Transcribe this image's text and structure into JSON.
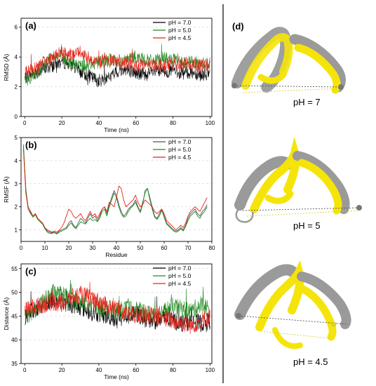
{
  "chart_data": [
    {
      "type": "line",
      "panel_label": "(a)",
      "xlabel": "Time (ns)",
      "ylabel": "RMSD (Å)",
      "xlim": [
        -2,
        101
      ],
      "ylim": [
        0,
        6.6
      ],
      "xticks": [
        0,
        20,
        40,
        60,
        80,
        100
      ],
      "yticks": [
        0,
        2,
        4,
        6
      ],
      "grid": true,
      "legend": "top-right",
      "series": [
        {
          "name": "pH = 7.0",
          "color": "#000000",
          "x": [
            0,
            5,
            10,
            15,
            20,
            25,
            30,
            35,
            40,
            45,
            50,
            55,
            60,
            65,
            70,
            75,
            80,
            85,
            90,
            95,
            100
          ],
          "values": [
            2.6,
            2.9,
            3.2,
            3.4,
            3.7,
            3.5,
            3.0,
            2.7,
            2.4,
            2.6,
            3.0,
            3.2,
            2.9,
            2.8,
            3.0,
            3.0,
            3.1,
            2.9,
            3.0,
            2.8,
            2.9
          ]
        },
        {
          "name": "pH = 5.0",
          "color": "#1f8a1f",
          "x": [
            0,
            5,
            10,
            15,
            20,
            25,
            30,
            35,
            40,
            45,
            50,
            55,
            60,
            65,
            70,
            75,
            80,
            85,
            90,
            95,
            100
          ],
          "values": [
            2.4,
            2.8,
            3.4,
            4.2,
            4.0,
            3.6,
            3.4,
            3.5,
            3.7,
            3.9,
            3.6,
            3.8,
            4.0,
            3.8,
            3.7,
            3.9,
            3.8,
            3.6,
            3.7,
            3.5,
            3.6
          ]
        },
        {
          "name": "pH = 4.5",
          "color": "#e8231a",
          "x": [
            0,
            5,
            10,
            15,
            20,
            25,
            30,
            35,
            40,
            45,
            50,
            55,
            60,
            65,
            70,
            75,
            80,
            85,
            90,
            95,
            100
          ],
          "values": [
            3.0,
            3.2,
            3.6,
            4.0,
            4.3,
            4.1,
            4.4,
            3.9,
            3.6,
            3.7,
            3.8,
            3.5,
            3.4,
            3.6,
            3.5,
            3.4,
            3.6,
            3.5,
            3.6,
            3.4,
            3.5
          ]
        }
      ]
    },
    {
      "type": "line",
      "panel_label": "(b)",
      "xlabel": "Residue",
      "ylabel": "RMSF (Å)",
      "xlim": [
        0,
        80
      ],
      "ylim": [
        0.5,
        5
      ],
      "xticks": [
        0,
        10,
        20,
        30,
        40,
        50,
        60,
        70,
        80
      ],
      "yticks": [
        1,
        2,
        3,
        4,
        5
      ],
      "grid": true,
      "legend": "top-right",
      "series": [
        {
          "name": "pH = 7.0",
          "color": "#555555",
          "x": [
            1,
            2,
            3,
            4,
            5,
            6,
            7,
            8,
            9,
            10,
            11,
            12,
            13,
            14,
            15,
            16,
            17,
            18,
            19,
            20,
            21,
            22,
            23,
            24,
            25,
            26,
            27,
            28,
            29,
            30,
            31,
            32,
            33,
            34,
            35,
            36,
            37,
            38,
            39,
            40,
            41,
            42,
            43,
            44,
            45,
            46,
            47,
            48,
            49,
            50,
            51,
            52,
            53,
            54,
            55,
            56,
            57,
            58,
            59,
            60,
            61,
            62,
            63,
            64,
            65,
            66,
            67,
            68,
            69,
            70,
            71,
            72,
            73,
            74,
            75,
            76,
            77,
            78
          ],
          "values": [
            4.6,
            2.7,
            2.0,
            1.8,
            1.6,
            1.7,
            1.5,
            1.4,
            1.3,
            1.1,
            0.95,
            0.9,
            0.88,
            0.9,
            0.85,
            0.95,
            1.0,
            1.05,
            1.1,
            1.3,
            1.4,
            1.2,
            1.1,
            1.3,
            1.5,
            1.4,
            1.3,
            1.5,
            1.7,
            1.5,
            1.6,
            1.4,
            1.6,
            1.9,
            2.0,
            1.7,
            2.1,
            2.4,
            2.7,
            2.5,
            2.1,
            1.8,
            1.6,
            1.7,
            1.9,
            2.0,
            2.1,
            2.3,
            2.0,
            1.8,
            2.2,
            2.6,
            2.8,
            2.4,
            2.0,
            1.6,
            1.5,
            1.7,
            1.9,
            1.6,
            1.3,
            1.2,
            1.1,
            1.0,
            0.95,
            1.0,
            1.1,
            1.0,
            1.2,
            1.5,
            1.7,
            1.8,
            1.9,
            1.7,
            1.6,
            1.8,
            1.9,
            2.1
          ]
        },
        {
          "name": "pH = 5.0",
          "color": "#1f8a1f",
          "x": [
            1,
            2,
            3,
            4,
            5,
            6,
            7,
            8,
            9,
            10,
            11,
            12,
            13,
            14,
            15,
            16,
            17,
            18,
            19,
            20,
            21,
            22,
            23,
            24,
            25,
            26,
            27,
            28,
            29,
            30,
            31,
            32,
            33,
            34,
            35,
            36,
            37,
            38,
            39,
            40,
            41,
            42,
            43,
            44,
            45,
            46,
            47,
            48,
            49,
            50,
            51,
            52,
            53,
            54,
            55,
            56,
            57,
            58,
            59,
            60,
            61,
            62,
            63,
            64,
            65,
            66,
            67,
            68,
            69,
            70,
            71,
            72,
            73,
            74,
            75,
            76,
            77,
            78
          ],
          "values": [
            4.7,
            2.8,
            1.9,
            1.7,
            1.55,
            1.65,
            1.45,
            1.35,
            1.25,
            1.05,
            0.9,
            0.85,
            0.85,
            0.88,
            0.82,
            0.9,
            0.95,
            1.0,
            1.05,
            1.2,
            1.3,
            1.15,
            1.05,
            1.2,
            1.35,
            1.3,
            1.25,
            1.4,
            1.5,
            1.4,
            1.45,
            1.35,
            1.5,
            1.8,
            1.9,
            1.6,
            2.0,
            2.3,
            2.6,
            2.4,
            2.0,
            1.7,
            1.55,
            1.6,
            1.8,
            1.95,
            2.05,
            2.2,
            1.95,
            1.75,
            2.1,
            2.7,
            2.8,
            2.3,
            1.9,
            1.55,
            1.45,
            1.6,
            1.85,
            1.55,
            1.25,
            1.15,
            1.05,
            0.95,
            0.9,
            0.95,
            1.05,
            0.95,
            1.15,
            1.4,
            1.6,
            1.7,
            1.8,
            1.6,
            1.5,
            1.7,
            1.8,
            2.0
          ]
        },
        {
          "name": "pH = 4.5",
          "color": "#e8231a",
          "x": [
            1,
            2,
            3,
            4,
            5,
            6,
            7,
            8,
            9,
            10,
            11,
            12,
            13,
            14,
            15,
            16,
            17,
            18,
            19,
            20,
            21,
            22,
            23,
            24,
            25,
            26,
            27,
            28,
            29,
            30,
            31,
            32,
            33,
            34,
            35,
            36,
            37,
            38,
            39,
            40,
            41,
            42,
            43,
            44,
            45,
            46,
            47,
            48,
            49,
            50,
            51,
            52,
            53,
            54,
            55,
            56,
            57,
            58,
            59,
            60,
            61,
            62,
            63,
            64,
            65,
            66,
            67,
            68,
            69,
            70,
            71,
            72,
            73,
            74,
            75,
            76,
            77,
            78
          ],
          "values": [
            4.5,
            2.6,
            1.9,
            1.75,
            1.6,
            1.7,
            1.5,
            1.4,
            1.3,
            1.1,
            1.0,
            0.95,
            0.9,
            0.95,
            0.9,
            1.0,
            1.1,
            1.3,
            1.6,
            1.9,
            1.8,
            1.6,
            1.5,
            1.6,
            1.7,
            1.5,
            1.4,
            1.6,
            1.8,
            1.6,
            1.7,
            1.5,
            1.7,
            1.9,
            2.0,
            1.8,
            2.2,
            2.1,
            2.0,
            2.4,
            2.9,
            2.8,
            2.3,
            2.0,
            2.1,
            2.2,
            2.3,
            2.5,
            2.2,
            2.0,
            2.1,
            2.3,
            2.2,
            2.1,
            2.0,
            1.8,
            1.7,
            1.8,
            1.9,
            1.7,
            1.4,
            1.3,
            1.2,
            1.1,
            1.0,
            1.1,
            1.2,
            1.1,
            1.3,
            1.6,
            1.8,
            1.9,
            2.0,
            1.9,
            1.8,
            2.0,
            2.2,
            2.4
          ]
        }
      ]
    },
    {
      "type": "line",
      "panel_label": "(c)",
      "xlabel": "Time (ns)",
      "ylabel": "Distance (Å)",
      "xlim": [
        -2,
        101
      ],
      "ylim": [
        35,
        56
      ],
      "xticks": [
        0,
        20,
        40,
        60,
        80,
        100
      ],
      "yticks": [
        35,
        40,
        45,
        50,
        55
      ],
      "grid": true,
      "legend": "top-right",
      "series": [
        {
          "name": "pH = 7.0",
          "color": "#000000",
          "x": [
            0,
            5,
            10,
            15,
            20,
            25,
            30,
            35,
            40,
            45,
            50,
            55,
            60,
            65,
            70,
            75,
            80,
            85,
            90,
            95,
            100
          ],
          "values": [
            45.0,
            46.5,
            47.5,
            48.5,
            48.0,
            47.5,
            47.0,
            46.0,
            45.5,
            45.0,
            44.5,
            45.0,
            45.5,
            44.5,
            44.0,
            44.5,
            44.0,
            43.5,
            44.0,
            43.5,
            44.0
          ]
        },
        {
          "name": "pH = 5.0",
          "color": "#1f8a1f",
          "x": [
            0,
            5,
            10,
            15,
            20,
            25,
            30,
            35,
            40,
            45,
            50,
            55,
            60,
            65,
            70,
            75,
            80,
            85,
            90,
            95,
            100
          ],
          "values": [
            44.5,
            46.0,
            48.0,
            50.0,
            49.5,
            48.5,
            48.0,
            47.5,
            47.0,
            46.5,
            46.0,
            46.5,
            46.5,
            45.5,
            45.5,
            46.0,
            47.0,
            46.5,
            46.0,
            47.5,
            46.5
          ]
        },
        {
          "name": "pH = 4.5",
          "color": "#e8231a",
          "x": [
            0,
            5,
            10,
            15,
            20,
            25,
            30,
            35,
            40,
            45,
            50,
            55,
            60,
            65,
            70,
            75,
            80,
            85,
            90,
            95,
            100
          ],
          "values": [
            46.0,
            47.0,
            47.5,
            48.0,
            47.5,
            49.0,
            49.5,
            49.0,
            48.0,
            47.0,
            46.5,
            45.5,
            45.0,
            45.5,
            45.0,
            44.5,
            44.0,
            43.5,
            43.0,
            44.0,
            45.0
          ]
        }
      ]
    }
  ],
  "structures": [
    {
      "label": "pH = 7",
      "colors": {
        "reference": "#9a9a9a",
        "variant": "#f5e40a"
      }
    },
    {
      "label": "pH = 5",
      "colors": {
        "reference": "#9a9a9a",
        "variant": "#f5e40a"
      }
    },
    {
      "label": "pH = 4.5",
      "colors": {
        "reference": "#9a9a9a",
        "variant": "#f5e40a"
      }
    }
  ],
  "structure_panel_label": "(d)"
}
